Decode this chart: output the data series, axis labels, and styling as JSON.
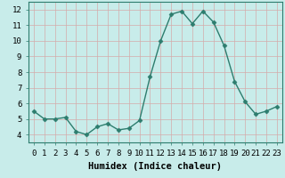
{
  "x": [
    0,
    1,
    2,
    3,
    4,
    5,
    6,
    7,
    8,
    9,
    10,
    11,
    12,
    13,
    14,
    15,
    16,
    17,
    18,
    19,
    20,
    21,
    22,
    23
  ],
  "y": [
    5.5,
    5.0,
    5.0,
    5.1,
    4.2,
    4.0,
    4.5,
    4.7,
    4.3,
    4.4,
    4.9,
    7.7,
    10.0,
    11.7,
    11.9,
    11.1,
    11.9,
    11.2,
    9.7,
    7.4,
    6.1,
    5.3,
    5.5,
    5.8
  ],
  "xlabel": "Humidex (Indice chaleur)",
  "xlim": [
    -0.5,
    23.5
  ],
  "ylim": [
    3.5,
    12.5
  ],
  "yticks": [
    4,
    5,
    6,
    7,
    8,
    9,
    10,
    11,
    12
  ],
  "xticks": [
    0,
    1,
    2,
    3,
    4,
    5,
    6,
    7,
    8,
    9,
    10,
    11,
    12,
    13,
    14,
    15,
    16,
    17,
    18,
    19,
    20,
    21,
    22,
    23
  ],
  "line_color": "#2d7d6e",
  "marker": "D",
  "marker_size": 2.5,
  "bg_color": "#c8ecea",
  "grid_color": "#d4aaaa",
  "tick_fontsize": 6.5,
  "xlabel_fontsize": 7.5,
  "line_width": 1.0
}
